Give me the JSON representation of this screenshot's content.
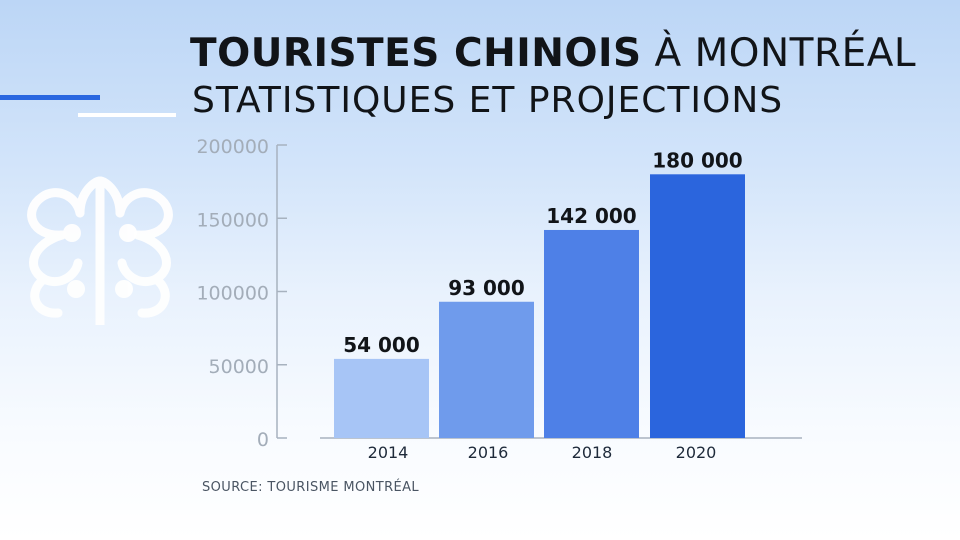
{
  "title": {
    "bold": "TOURISTES CHINOIS",
    "rest": "À MONTRÉAL",
    "subtitle": "STATISTIQUES ET PROJECTIONS"
  },
  "source": "SOURCE: TOURISME MONTRÉAL",
  "colors": {
    "bars": [
      "#a7c5f6",
      "#6f9bec",
      "#4e80e7",
      "#2b65dd"
    ],
    "axis": "#a7b2bf",
    "accent": "#2a67e0"
  },
  "logo_icon": "montreal-rose-logo-icon",
  "chart_data": {
    "type": "bar",
    "categories": [
      "2014",
      "2016",
      "2018",
      "2020"
    ],
    "values": [
      54000,
      93000,
      142000,
      180000
    ],
    "value_labels": [
      "54 000",
      "93 000",
      "142 000",
      "180 000"
    ],
    "y_ticks": [
      0,
      50000,
      100000,
      150000,
      200000
    ],
    "y_tick_labels": [
      "0",
      "50000",
      "100000",
      "150000",
      "200000"
    ],
    "ylim": [
      0,
      200000
    ],
    "grid": false,
    "legend": "none"
  }
}
